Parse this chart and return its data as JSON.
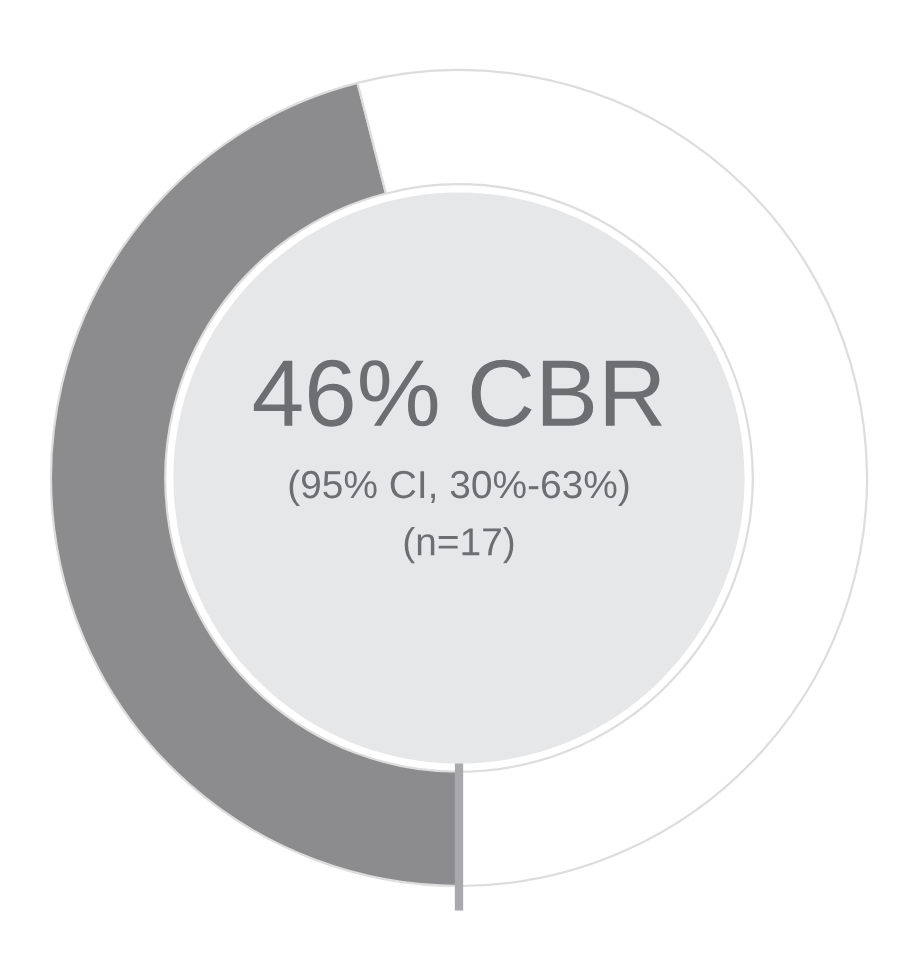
{
  "chart_data": {
    "type": "donut",
    "categories": [
      null,
      null
    ],
    "values": [
      46,
      54
    ],
    "colors": [
      "#8c8c8e",
      "#ffffff"
    ],
    "title": "46% CBR",
    "annotations": [
      "(95% CI, 30%-63%)",
      "(n=17)"
    ]
  }
}
